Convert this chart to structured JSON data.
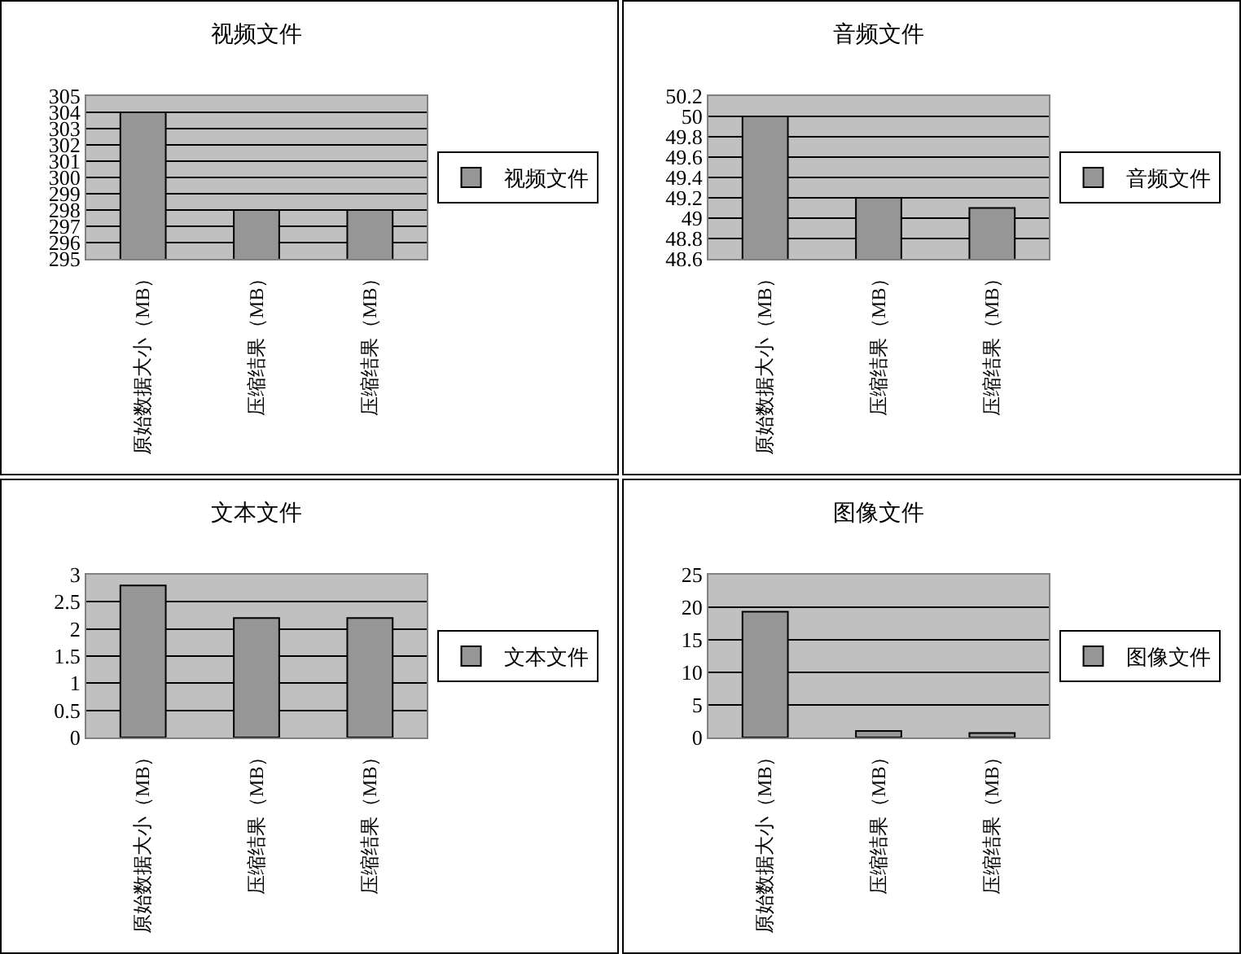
{
  "chart_data": [
    {
      "type": "bar",
      "title": "视频文件",
      "categories": [
        "原始数据大小（MB）",
        "压缩结果（MB）",
        "压缩结果（MB）"
      ],
      "series": [
        {
          "name": "视频文件",
          "color": "#969696",
          "values": [
            304,
            298,
            298
          ]
        }
      ],
      "ylim": [
        295,
        305
      ],
      "yticks": [
        295,
        296,
        297,
        298,
        299,
        300,
        301,
        302,
        303,
        304,
        305
      ],
      "grid": "y",
      "legend": "right"
    },
    {
      "type": "bar",
      "title": "音频文件",
      "categories": [
        "原始数据大小（MB）",
        "压缩结果（MB）",
        "压缩结果（MB）"
      ],
      "series": [
        {
          "name": "音频文件",
          "color": "#969696",
          "values": [
            50,
            49.2,
            49.1
          ]
        }
      ],
      "ylim": [
        48.6,
        50.2
      ],
      "yticks": [
        48.6,
        48.8,
        49,
        49.2,
        49.4,
        49.6,
        49.8,
        50,
        50.2
      ],
      "grid": "y",
      "legend": "right"
    },
    {
      "type": "bar",
      "title": "文本文件",
      "categories": [
        "原始数据大小（MB）",
        "压缩结果（MB）",
        "压缩结果（MB）"
      ],
      "series": [
        {
          "name": "文本文件",
          "color": "#969696",
          "values": [
            2.8,
            2.2,
            2.2
          ]
        }
      ],
      "ylim": [
        0,
        3
      ],
      "yticks": [
        0,
        0.5,
        1,
        1.5,
        2,
        2.5,
        3
      ],
      "grid": "y",
      "legend": "right"
    },
    {
      "type": "bar",
      "title": "图像文件",
      "categories": [
        "原始数据大小（MB）",
        "压缩结果（MB）",
        "压缩结果（MB）"
      ],
      "series": [
        {
          "name": "图像文件",
          "color": "#969696",
          "values": [
            19.3,
            1,
            0.7
          ]
        }
      ],
      "ylim": [
        0,
        25
      ],
      "yticks": [
        0,
        5,
        10,
        15,
        20,
        25
      ],
      "grid": "y",
      "legend": "right"
    }
  ]
}
